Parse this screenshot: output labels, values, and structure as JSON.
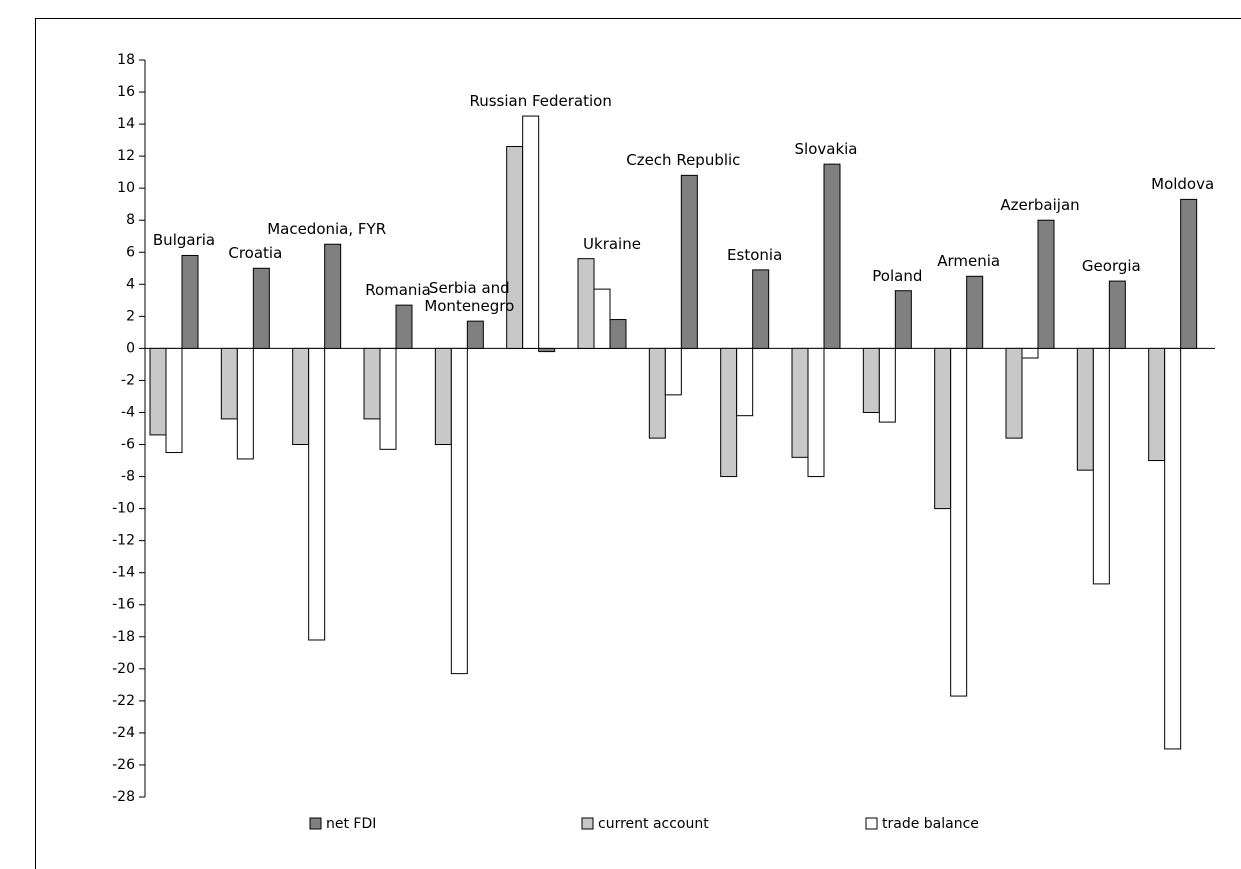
{
  "chart_data": {
    "type": "bar",
    "categories": [
      "Bulgaria",
      "Croatia",
      "Macedonia, FYR",
      "Romania",
      "Serbia and Montenegro",
      "Russian Federation",
      "Ukraine",
      "Czech Republic",
      "Estonia",
      "Slovakia",
      "Poland",
      "Armenia",
      "Azerbaijan",
      "Georgia",
      "Moldova"
    ],
    "series": [
      {
        "name": "net FDI",
        "color": "#808080",
        "values": [
          5.8,
          5.0,
          6.5,
          2.7,
          1.7,
          -0.2,
          1.8,
          10.8,
          4.9,
          11.5,
          3.6,
          4.5,
          8.0,
          4.2,
          9.3
        ]
      },
      {
        "name": "current account",
        "color": "#c8c8c8",
        "values": [
          -5.4,
          -4.4,
          -6.0,
          -4.4,
          -6.0,
          12.6,
          5.6,
          -5.6,
          -8.0,
          -6.8,
          -4.0,
          -10.0,
          -5.6,
          -7.6,
          -7.0
        ]
      },
      {
        "name": "trade balance",
        "color": "#ffffff",
        "values": [
          -6.5,
          -6.9,
          -18.2,
          -6.3,
          -20.3,
          14.5,
          3.7,
          -2.9,
          -4.2,
          -8.0,
          -4.6,
          -21.7,
          -0.6,
          -14.7,
          -25.0
        ]
      }
    ],
    "ylim": [
      -28,
      18
    ],
    "yticks": [
      -28,
      -26,
      -24,
      -22,
      -20,
      -18,
      -16,
      -14,
      -12,
      -10,
      -8,
      -6,
      -4,
      -2,
      0,
      2,
      4,
      6,
      8,
      10,
      12,
      14,
      16,
      18
    ]
  }
}
